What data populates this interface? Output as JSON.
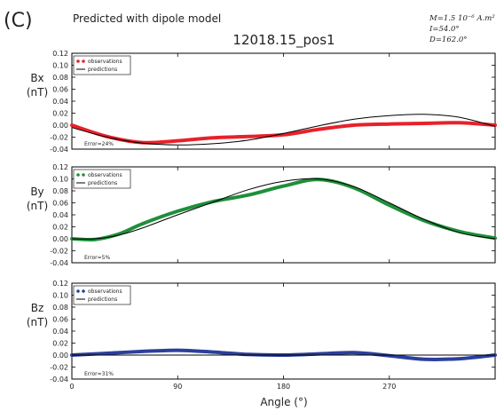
{
  "panel_label": "(C)",
  "header": {
    "top_text": "Predicted with dipole model",
    "subtitle": "12018.15_pos1",
    "params": [
      "M=1.5 10⁻⁶ A.m²",
      "I=54.0°",
      "D=162.0°"
    ]
  },
  "colors": {
    "observations": [
      "#e8212a",
      "#1f8f3a",
      "#2b3f9e"
    ],
    "predictions": "#000000"
  },
  "chart_data": [
    {
      "type": "line",
      "component": "Bx",
      "ylabel": "Bx",
      "yunit": "(nT)",
      "ylim": [
        -0.04,
        0.12
      ],
      "yticks": [
        "0.12",
        "0.10",
        "0.08",
        "0.06",
        "0.04",
        "0.02",
        "0.00",
        "-0.02",
        "-0.04"
      ],
      "legend": {
        "placement": "top-left",
        "entries": [
          "observations",
          "predictions"
        ]
      },
      "error": "Error=24%",
      "x": [
        0,
        30,
        60,
        90,
        120,
        150,
        180,
        210,
        240,
        270,
        300,
        330,
        360
      ],
      "series": [
        {
          "name": "observations",
          "values": [
            0.0,
            -0.019,
            -0.029,
            -0.026,
            -0.021,
            -0.019,
            -0.016,
            -0.007,
            0.0,
            0.002,
            0.003,
            0.004,
            0.0
          ]
        },
        {
          "name": "predictions",
          "values": [
            -0.004,
            -0.02,
            -0.03,
            -0.033,
            -0.031,
            -0.025,
            -0.014,
            -0.001,
            0.01,
            0.016,
            0.018,
            0.013,
            -0.002
          ]
        }
      ]
    },
    {
      "type": "line",
      "component": "By",
      "ylabel": "By",
      "yunit": "(nT)",
      "ylim": [
        -0.04,
        0.12
      ],
      "yticks": [
        "0.12",
        "0.10",
        "0.08",
        "0.06",
        "0.04",
        "0.02",
        "0.00",
        "-0.02",
        "-0.04"
      ],
      "legend": {
        "placement": "top-left",
        "entries": [
          "observations",
          "predictions"
        ]
      },
      "error": "Error=5%",
      "x": [
        0,
        20,
        40,
        60,
        90,
        120,
        150,
        180,
        210,
        240,
        270,
        300,
        330,
        360
      ],
      "series": [
        {
          "name": "observations",
          "values": [
            0.0,
            -0.001,
            0.008,
            0.025,
            0.046,
            0.062,
            0.073,
            0.088,
            0.099,
            0.085,
            0.056,
            0.03,
            0.012,
            0.001
          ]
        },
        {
          "name": "predictions",
          "values": [
            0.0,
            0.0,
            0.006,
            0.018,
            0.04,
            0.061,
            0.082,
            0.096,
            0.1,
            0.087,
            0.06,
            0.032,
            0.01,
            0.0
          ]
        }
      ]
    },
    {
      "type": "line",
      "component": "Bz",
      "ylabel": "Bz",
      "yunit": "(nT)",
      "ylim": [
        -0.04,
        0.12
      ],
      "yticks": [
        "0.12",
        "0.10",
        "0.08",
        "0.06",
        "0.04",
        "0.02",
        "0.00",
        "-0.02",
        "-0.04"
      ],
      "legend": {
        "placement": "top-left",
        "entries": [
          "observations",
          "predictions"
        ]
      },
      "error": "Error=31%",
      "x": [
        0,
        30,
        60,
        90,
        120,
        150,
        180,
        210,
        240,
        270,
        300,
        330,
        360
      ],
      "series": [
        {
          "name": "observations",
          "values": [
            0.0,
            0.003,
            0.006,
            0.008,
            0.005,
            0.001,
            0.0,
            0.002,
            0.004,
            -0.001,
            -0.007,
            -0.006,
            0.0
          ]
        },
        {
          "name": "predictions",
          "values": [
            0.0,
            0.0,
            0.0,
            0.0,
            0.0,
            0.0,
            0.0,
            0.0,
            0.0,
            0.0,
            0.0,
            0.0,
            0.0
          ]
        }
      ]
    }
  ],
  "xaxis": {
    "label": "Angle (°)",
    "ticks": [
      "0",
      "90",
      "180",
      "270"
    ],
    "tick_values": [
      0,
      90,
      180,
      270
    ],
    "xlim": [
      0,
      360
    ]
  }
}
